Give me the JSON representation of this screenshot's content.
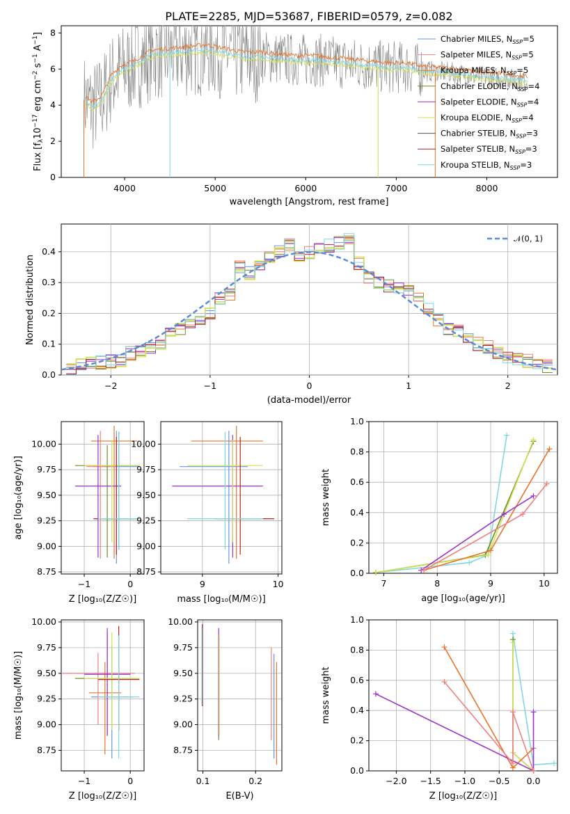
{
  "title": "PLATE=2285, MJD=53687, FIBERID=0579, z=0.082",
  "colors": {
    "Chabrier MILES": "#6495ed",
    "Salpeter MILES": "#f08080",
    "Kroupa MILES": "#e8742a",
    "Chabrier ELODIE": "#6b8e23",
    "Salpeter ELODIE": "#9932cc",
    "Kroupa ELODIE": "#d4e157",
    "Chabrier STELIB": "#555555",
    "Salpeter STELIB": "#b22222",
    "Kroupa STELIB": "#7fd8e0",
    "violet": "#8e2fb8",
    "pink": "#e377c2",
    "normal_curve": "#5b8bd4",
    "data_spectrum": "#808080"
  },
  "panels": {
    "spectrum": {
      "xlabel": "wavelength [Angstrom, rest frame]",
      "ylabel": "Flux [f$_\\lambda$10$^{-17}$ erg cm$^{-2}$ s$^{-1}$ A$^{-1}$]",
      "xticks": [
        "4000",
        "5000",
        "6000",
        "7000",
        "8000"
      ],
      "yticks": [
        "0",
        "2",
        "4",
        "6",
        "8"
      ],
      "legend": [
        {
          "name": "Chabrier MILES",
          "nssp": "5"
        },
        {
          "name": "Salpeter MILES",
          "nssp": "5"
        },
        {
          "name": "Kroupa MILES",
          "nssp": "5"
        },
        {
          "name": "Chabrier ELODIE",
          "nssp": "4"
        },
        {
          "name": "Salpeter ELODIE",
          "nssp": "4"
        },
        {
          "name": "Kroupa ELODIE",
          "nssp": "4"
        },
        {
          "name": "Chabrier STELIB",
          "nssp": "3"
        },
        {
          "name": "Salpeter STELIB",
          "nssp": "3"
        },
        {
          "name": "Kroupa STELIB",
          "nssp": "3"
        }
      ]
    },
    "residuals": {
      "xlabel": "(data-model)/error",
      "ylabel": "Normed distribution",
      "xticks": [
        "−2",
        "−1",
        "0",
        "1",
        "2"
      ],
      "yticks": [
        "0.0",
        "0.1",
        "0.2",
        "0.3",
        "0.4"
      ],
      "legend": "𝒩(0, 1)"
    },
    "age_Z": {
      "xlabel": "Z [log₁₀(Z/Z☉)]",
      "ylabel": "age  [log₁₀(age/yr)]",
      "xticks": [
        "−1",
        "0"
      ],
      "yticks": [
        "8.75",
        "9.00",
        "9.25",
        "9.50",
        "9.75",
        "10.00"
      ]
    },
    "age_mass": {
      "xlabel": "mass [log₁₀(M/M☉)]",
      "xticks": [
        "9",
        "10"
      ],
      "yticks": [
        "8.75",
        "9.00",
        "9.25",
        "9.50",
        "9.75",
        "10.00"
      ]
    },
    "weight_age": {
      "xlabel": "age  [log₁₀(age/yr)]",
      "ylabel": "mass weight",
      "xticks": [
        "7",
        "8",
        "9",
        "10"
      ],
      "yticks": [
        "0.0",
        "0.2",
        "0.4",
        "0.6",
        "0.8",
        "1.0"
      ]
    },
    "mass_Z": {
      "xlabel": "Z [log₁₀(Z/Z☉)]",
      "ylabel": "mass [log₁₀(M/M☉)]",
      "xticks": [
        "−1",
        "0"
      ],
      "yticks": [
        "8.75",
        "9.00",
        "9.25",
        "9.50",
        "9.75",
        "10.00"
      ]
    },
    "mass_ebv": {
      "xlabel": "E(B-V)",
      "xticks": [
        "0.1",
        "0.2"
      ],
      "yticks": [
        "8.75",
        "9.00",
        "9.25",
        "9.50",
        "9.75",
        "10.00"
      ]
    },
    "weight_Z": {
      "xlabel": "Z [log₁₀(Z/Z☉)]",
      "ylabel": "mass weight",
      "xticks": [
        "−2.0",
        "−1.5",
        "−1.0",
        "−0.5",
        "0.0"
      ],
      "yticks": [
        "0.0",
        "0.2",
        "0.4",
        "0.6",
        "0.8",
        "1.0"
      ]
    }
  },
  "chart_data": [
    {
      "type": "line",
      "title": "PLATE=2285, MJD=53687, FIBERID=0579, z=0.082",
      "xlabel": "wavelength [Angstrom, rest frame]",
      "ylabel": "Flux [f_λ 10^-17 erg cm^-2 s^-1 A^-1]",
      "xlim": [
        3300,
        8780
      ],
      "ylim": [
        0,
        8.4
      ],
      "x": [
        3550,
        3650,
        3750,
        3850,
        3950,
        4100,
        4300,
        4500,
        4700,
        4900,
        5100,
        5300,
        5500,
        5700,
        5900,
        6100,
        6300,
        6500,
        6700,
        6900,
        7100,
        7300,
        7600,
        7900,
        8200,
        8500
      ],
      "series": [
        {
          "name": "Kroupa STELIB",
          "values": [
            4.3,
            3.9,
            4.3,
            5.4,
            5.9,
            6.2,
            6.8,
            6.9,
            7.0,
            7.1,
            6.9,
            6.7,
            6.7,
            6.6,
            6.5,
            6.5,
            6.4,
            6.3,
            6.2,
            6.1,
            6.1,
            5.9,
            5.8,
            5.6,
            5.5,
            5.3
          ]
        }
      ]
    },
    {
      "type": "line",
      "xlabel": "(data-model)/error",
      "ylabel": "Normed distribution",
      "xlim": [
        -2.5,
        2.5
      ],
      "ylim": [
        0,
        0.49
      ],
      "series": [
        {
          "name": "𝒩(0, 1)",
          "function": "gaussian",
          "mean": 0,
          "sigma": 1
        }
      ],
      "histogram_bin_centers": [
        -2.4,
        -2.3,
        -2.2,
        -2.1,
        -2.0,
        -1.9,
        -1.8,
        -1.7,
        -1.6,
        -1.5,
        -1.4,
        -1.3,
        -1.2,
        -1.1,
        -1.0,
        -0.9,
        -0.8,
        -0.7,
        -0.6,
        -0.5,
        -0.4,
        -0.3,
        -0.2,
        -0.1,
        0.0,
        0.1,
        0.2,
        0.3,
        0.4,
        0.5,
        0.6,
        0.7,
        0.8,
        0.9,
        1.0,
        1.1,
        1.2,
        1.3,
        1.4,
        1.5,
        1.6,
        1.7,
        1.8,
        1.9,
        2.0,
        2.1,
        2.2,
        2.3,
        2.4
      ],
      "histogram_density": [
        0.025,
        0.03,
        0.035,
        0.04,
        0.045,
        0.05,
        0.07,
        0.08,
        0.09,
        0.1,
        0.13,
        0.15,
        0.16,
        0.18,
        0.2,
        0.25,
        0.26,
        0.35,
        0.33,
        0.35,
        0.38,
        0.4,
        0.42,
        0.39,
        0.4,
        0.41,
        0.42,
        0.43,
        0.44,
        0.36,
        0.32,
        0.3,
        0.29,
        0.28,
        0.27,
        0.25,
        0.22,
        0.18,
        0.15,
        0.14,
        0.12,
        0.1,
        0.09,
        0.075,
        0.06,
        0.05,
        0.045,
        0.035,
        0.03
      ]
    },
    {
      "type": "scatter",
      "xlabel": "Z [log10(Z/Z☉)]",
      "ylabel": "age [log10(age/yr)]",
      "xlim": [
        -1.5,
        0.3
      ],
      "ylim": [
        8.73,
        10.22
      ],
      "series": [
        {
          "name": "Chabrier MILES",
          "values": [
            {
              "x": -0.3,
              "y": 9.78,
              "xerr": 0.5,
              "yerr": [
                0.95,
                0.35
              ]
            }
          ]
        },
        {
          "name": "Salpeter MILES",
          "values": [
            {
              "x": -0.65,
              "y": 9.78,
              "xerr": 0.3,
              "yerr": [
                0.9,
                0.35
              ]
            }
          ]
        },
        {
          "name": "Kroupa MILES",
          "values": [
            {
              "x": -0.35,
              "y": 10.03,
              "xerr": 0.5,
              "yerr": [
                1.15,
                0.15
              ]
            }
          ]
        },
        {
          "name": "Chabrier ELODIE",
          "values": [
            {
              "x": -0.5,
              "y": 9.79,
              "xerr": 0.7,
              "yerr": [
                0.9,
                0.2
              ]
            }
          ]
        },
        {
          "name": "Salpeter ELODIE",
          "values": [
            {
              "x": -0.7,
              "y": 9.59,
              "xerr": 0.5,
              "yerr": [
                0.7,
                0.5
              ]
            }
          ]
        },
        {
          "name": "Kroupa ELODIE",
          "values": [
            {
              "x": -0.4,
              "y": 9.79,
              "xerr": 0.6,
              "yerr": [
                0.75,
                0.25
              ]
            }
          ]
        },
        {
          "name": "Chabrier STELIB",
          "values": [
            {
              "x": -0.25,
              "y": 9.27,
              "xerr": 0.4,
              "yerr": [
                0.3,
                0.85
              ]
            }
          ]
        },
        {
          "name": "Salpeter STELIB",
          "values": [
            {
              "x": -0.3,
              "y": 9.27,
              "xerr": 0.5,
              "yerr": [
                0.35,
                0.8
              ]
            }
          ]
        },
        {
          "name": "Kroupa STELIB",
          "values": [
            {
              "x": -0.25,
              "y": 9.27,
              "xerr": 0.45,
              "yerr": [
                0.3,
                0.85
              ]
            }
          ]
        }
      ]
    },
    {
      "type": "scatter",
      "xlabel": "mass [log10(M/M☉)]",
      "xlim": [
        8.45,
        10.05
      ],
      "ylim": [
        8.73,
        10.22
      ],
      "series": [
        {
          "name": "Chabrier MILES",
          "values": [
            {
              "x": 9.35,
              "y": 9.78,
              "xerr": [
                0.65,
                0.25
              ],
              "yerr": [
                0.95,
                0.35
              ]
            }
          ]
        },
        {
          "name": "Kroupa MILES",
          "values": [
            {
              "x": 9.45,
              "y": 10.03,
              "xerr": [
                0.6,
                0.35
              ],
              "yerr": [
                1.15,
                0.15
              ]
            }
          ]
        },
        {
          "name": "Salpeter ELODIE",
          "values": [
            {
              "x": 9.4,
              "y": 9.59,
              "xerr": [
                0.8,
                0.4
              ],
              "yerr": [
                0.7,
                0.5
              ]
            }
          ]
        },
        {
          "name": "Kroupa ELODIE",
          "values": [
            {
              "x": 9.4,
              "y": 9.79,
              "xerr": [
                0.6,
                0.4
              ],
              "yerr": [
                0.75,
                0.25
              ]
            }
          ]
        },
        {
          "name": "Salpeter STELIB",
          "values": [
            {
              "x": 9.5,
              "y": 9.27,
              "xerr": [
                0.35,
                0.45
              ],
              "yerr": [
                0.35,
                0.8
              ]
            }
          ]
        },
        {
          "name": "Kroupa STELIB",
          "values": [
            {
              "x": 9.3,
              "y": 9.27,
              "xerr": [
                0.5,
                0.5
              ],
              "yerr": [
                0.3,
                0.85
              ]
            }
          ]
        }
      ]
    },
    {
      "type": "line",
      "xlabel": "age [log10(age/yr)]",
      "ylabel": "mass weight",
      "xlim": [
        6.72,
        10.25
      ],
      "ylim": [
        0,
        1.0
      ],
      "series": [
        {
          "name": "Kroupa STELIB",
          "x": [
            6.85,
            8.6,
            8.95,
            9.3
          ],
          "values": [
            0.005,
            0.07,
            0.12,
            0.91
          ]
        },
        {
          "name": "Chabrier ELODIE",
          "x": [
            6.85,
            8.9,
            9.8
          ],
          "values": [
            0.005,
            0.12,
            0.87
          ]
        },
        {
          "name": "Kroupa ELODIE",
          "x": [
            6.85,
            8.95,
            9.8
          ],
          "values": [
            0.005,
            0.12,
            0.88
          ]
        },
        {
          "name": "Kroupa MILES",
          "x": [
            7.75,
            9.0,
            10.1
          ],
          "values": [
            0.02,
            0.15,
            0.82
          ]
        },
        {
          "name": "Salpeter ELODIE",
          "x": [
            7.7,
            9.25,
            9.8
          ],
          "values": [
            0.02,
            0.39,
            0.51
          ]
        },
        {
          "name": "Salpeter MILES",
          "x": [
            7.75,
            9.6,
            10.05
          ],
          "values": [
            0.02,
            0.39,
            0.59
          ]
        }
      ]
    },
    {
      "type": "scatter",
      "xlabel": "Z [log10(Z/Z☉)]",
      "ylabel": "mass [log10(M/M☉)]",
      "xlim": [
        -1.5,
        0.3
      ],
      "ylim": [
        8.55,
        10.02
      ],
      "series": [
        {
          "name": "Chabrier MILES",
          "values": [
            {
              "x": -0.4,
              "y": 9.27,
              "xerr": 0.45,
              "yerr": [
                0.6,
                0.5
              ]
            }
          ]
        },
        {
          "name": "Salpeter MILES",
          "values": [
            {
              "x": -0.7,
              "y": 9.5,
              "xerr": 0.8,
              "yerr": [
                0.5,
                0.2
              ]
            }
          ]
        },
        {
          "name": "Kroupa MILES",
          "values": [
            {
              "x": -0.55,
              "y": 9.31,
              "xerr": 0.35,
              "yerr": [
                0.6,
                0.3
              ]
            }
          ]
        },
        {
          "name": "Chabrier ELODIE",
          "values": [
            {
              "x": -0.5,
              "y": 9.45,
              "xerr": 0.7,
              "yerr": [
                0.55,
                0.45
              ]
            }
          ]
        },
        {
          "name": "Salpeter ELODIE",
          "values": [
            {
              "x": -0.5,
              "y": 9.49,
              "xerr": 0.5,
              "yerr": [
                0.6,
                0.45
              ]
            }
          ]
        },
        {
          "name": "Kroupa ELODIE",
          "values": [
            {
              "x": -0.4,
              "y": 9.45,
              "xerr": 0.6,
              "yerr": [
                0.5,
                0.45
              ]
            }
          ]
        },
        {
          "name": "Salpeter STELIB",
          "values": [
            {
              "x": -0.25,
              "y": 9.44,
              "xerr": 0.45,
              "yerr": [
                0.5,
                0.52
              ]
            }
          ]
        },
        {
          "name": "Kroupa STELIB",
          "values": [
            {
              "x": -0.25,
              "y": 9.27,
              "xerr": 0.45,
              "yerr": [
                0.6,
                0.6
              ]
            }
          ]
        }
      ]
    },
    {
      "type": "scatter",
      "xlabel": "E(B-V)",
      "xlim": [
        0.09,
        0.25
      ],
      "ylim": [
        8.55,
        10.02
      ],
      "series": [
        {
          "name": "Chabrier MILES",
          "values": [
            {
              "x": 0.235,
              "y": 9.27,
              "yerr": [
                0.6,
                0.42
              ]
            }
          ]
        },
        {
          "name": "Salpeter MILES",
          "values": [
            {
              "x": 0.23,
              "y": 9.5,
              "yerr": [
                0.65,
                0.25
              ]
            }
          ]
        },
        {
          "name": "Kroupa MILES",
          "values": [
            {
              "x": 0.24,
              "y": 9.31,
              "yerr": [
                0.7,
                0.3
              ]
            }
          ]
        },
        {
          "name": "Chabrier ELODIE",
          "values": [
            {
              "x": 0.13,
              "y": 9.4,
              "yerr": [
                0.55,
                0.45
              ]
            }
          ]
        },
        {
          "name": "Salpeter ELODIE",
          "values": [
            {
              "x": 0.13,
              "y": 9.49,
              "yerr": [
                0.6,
                0.45
              ]
            }
          ]
        },
        {
          "name": "Kroupa ELODIE",
          "values": [
            {
              "x": 0.131,
              "y": 9.45,
              "yerr": [
                0.55,
                0.42
              ]
            }
          ]
        },
        {
          "name": "Salpeter STELIB",
          "values": [
            {
              "x": 0.099,
              "y": 9.6,
              "yerr": [
                0.42,
                0.38
              ]
            }
          ]
        },
        {
          "name": "Kroupa STELIB",
          "values": [
            {
              "x": 0.098,
              "y": 9.5,
              "yerr": [
                0.3,
                0.45
              ]
            }
          ]
        }
      ]
    },
    {
      "type": "line",
      "xlabel": "Z [log10(Z/Z☉)]",
      "ylabel": "mass weight",
      "xlim": [
        -2.4,
        0.35
      ],
      "ylim": [
        0,
        1.0
      ],
      "series": [
        {
          "name": "Kroupa STELIB",
          "x": [
            -0.3,
            0.0,
            0.3
          ],
          "values": [
            0.91,
            0.04,
            0.05
          ]
        },
        {
          "name": "Chabrier ELODIE",
          "x": [
            -0.3,
            -0.3,
            0.0
          ],
          "values": [
            0.87,
            0.12,
            0.0
          ]
        },
        {
          "name": "Kroupa ELODIE",
          "x": [
            -0.3,
            -0.3,
            0.0
          ],
          "values": [
            0.85,
            0.12,
            0.0
          ]
        },
        {
          "name": "Kroupa MILES",
          "x": [
            -1.3,
            -0.3,
            0.0
          ],
          "values": [
            0.82,
            0.02,
            0.15
          ]
        },
        {
          "name": "Salpeter ELODIE",
          "x": [
            -2.3,
            0.0,
            0.0
          ],
          "values": [
            0.51,
            0.0,
            0.39
          ]
        },
        {
          "name": "Salpeter MILES",
          "x": [
            -1.3,
            -0.3,
            -0.3,
            0.0
          ],
          "values": [
            0.59,
            0.05,
            0.39,
            0.0
          ]
        }
      ]
    }
  ]
}
